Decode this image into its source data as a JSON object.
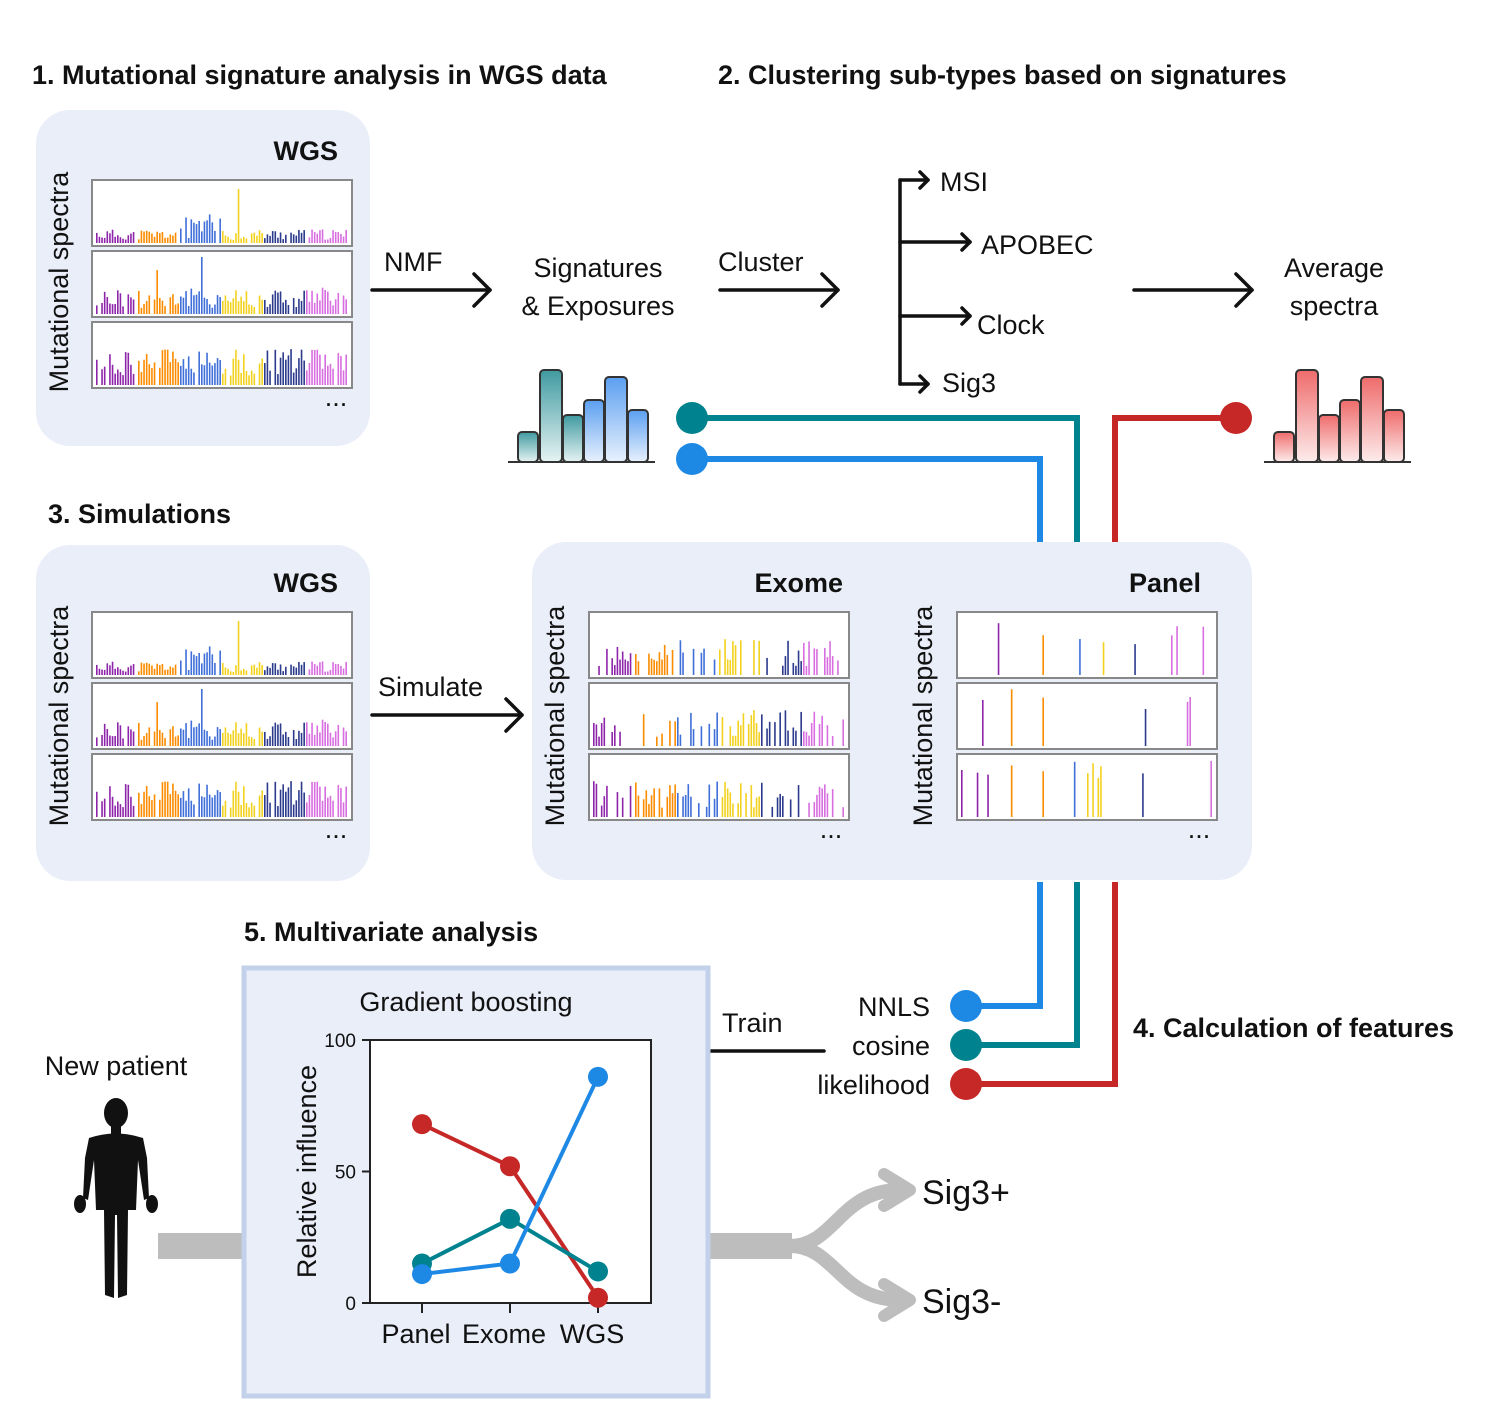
{
  "sections": {
    "s1": "1. Mutational signature analysis in WGS data",
    "s2": "2. Clustering sub-types based on signatures",
    "s3": "3. Simulations",
    "s4": "4. Calculation of features",
    "s5": "5. Multivariate analysis"
  },
  "panels": {
    "wgs": "WGS",
    "exome": "Exome",
    "panel": "Panel",
    "spectra_axis": "Mutational spectra",
    "ellipsis": "..."
  },
  "flow": {
    "nmf": "NMF",
    "signatures_line1": "Signatures",
    "signatures_line2": "& Exposures",
    "cluster": "Cluster",
    "subtypes": [
      "MSI",
      "APOBEC",
      "Clock",
      "Sig3"
    ],
    "average_line1": "Average",
    "average_line2": "spectra",
    "simulate": "Simulate",
    "train": "Train",
    "features": [
      "NNLS",
      "cosine",
      "likelihood"
    ],
    "new_patient": "New patient",
    "outcome_pos": "Sig3+",
    "outcome_neg": "Sig3-"
  },
  "colors": {
    "nnls": "#1e88e5",
    "cosine": "#00838f",
    "likelihood": "#c62828",
    "mut_purple": "#8e24aa",
    "mut_orange": "#fb8c00",
    "mut_blue": "#3f6fd8",
    "mut_yellow": "#f2d21f",
    "mut_navy": "#2b3a8c",
    "mut_pink": "#d86ee0"
  },
  "chart_data": {
    "type": "line",
    "title": "Gradient boosting",
    "xlabel": "",
    "ylabel": "Relative influence",
    "categories": [
      "Panel",
      "Exome",
      "WGS"
    ],
    "ylim": [
      0,
      100
    ],
    "yticks": [
      0,
      50,
      100
    ],
    "series": [
      {
        "name": "likelihood",
        "color": "#c62828",
        "values": [
          68,
          52,
          2
        ]
      },
      {
        "name": "cosine",
        "color": "#00838f",
        "values": [
          15,
          32,
          12
        ]
      },
      {
        "name": "NNLS",
        "color": "#1e88e5",
        "values": [
          11,
          15,
          86
        ]
      }
    ]
  }
}
